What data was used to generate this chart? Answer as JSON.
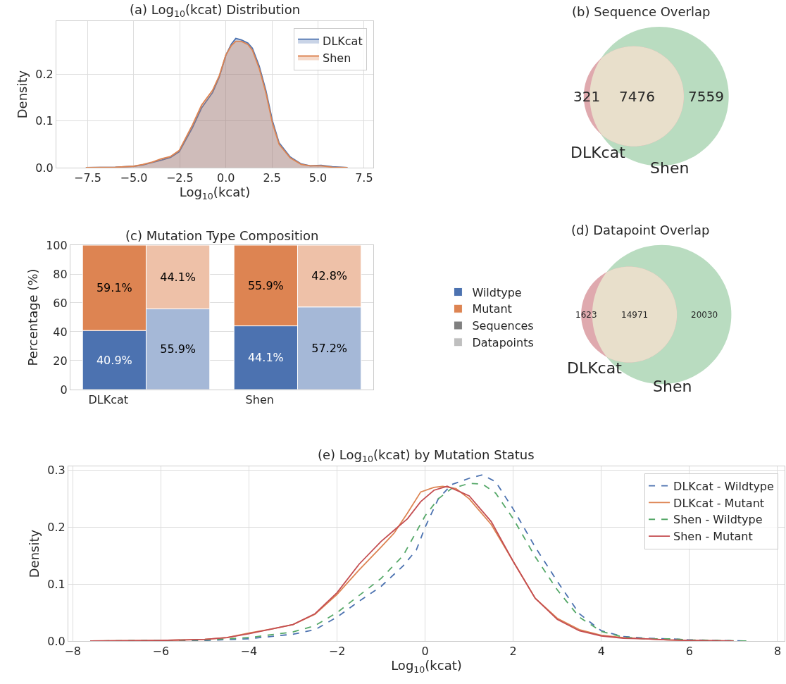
{
  "chart_data": [
    {
      "type": "area",
      "title": "(a) Log$_{10}$(kcat) Distribution",
      "xlabel": "Log$_{10}$(kcat)",
      "ylabel": "Density",
      "xlim": [
        -9.2,
        8.0
      ],
      "ylim": [
        0,
        0.314
      ],
      "xticks": [
        {
          "value": -7.5,
          "label": "−7.5"
        },
        {
          "value": -5,
          "label": "−5.0"
        },
        {
          "value": -2.5,
          "label": "−2.5"
        },
        {
          "value": 0,
          "label": "0.0"
        },
        {
          "value": 2.5,
          "label": "2.5"
        },
        {
          "value": 5,
          "label": "5.0"
        },
        {
          "value": 7.5,
          "label": "7.5"
        }
      ],
      "yticks": [
        {
          "value": 0,
          "label": "0.0"
        },
        {
          "value": 0.1,
          "label": "0.1"
        },
        {
          "value": 0.2,
          "label": "0.2"
        }
      ],
      "grid": true,
      "legend": "top right",
      "series": [
        {
          "name": "DLKcat",
          "color": "#4c72b0",
          "x": [
            -7.6,
            -6,
            -5,
            -4.5,
            -4,
            -3.5,
            -3,
            -2.53,
            -1.81,
            -1.32,
            -0.72,
            -0.36,
            0,
            0.3,
            0.54,
            0.84,
            1.2,
            1.44,
            1.81,
            2.17,
            2.53,
            2.89,
            3.49,
            4.09,
            4.57,
            5.17,
            5.78,
            6.6
          ],
          "values": [
            0,
            0.001,
            0.003,
            0.006,
            0.011,
            0.016,
            0.022,
            0.034,
            0.086,
            0.128,
            0.161,
            0.194,
            0.241,
            0.265,
            0.277,
            0.274,
            0.267,
            0.256,
            0.218,
            0.166,
            0.1,
            0.053,
            0.023,
            0.008,
            0.004,
            0.005,
            0.002,
            0
          ]
        },
        {
          "name": "Shen",
          "color": "#dd8452",
          "x": [
            -7.6,
            -6,
            -5,
            -4.5,
            -4,
            -3.5,
            -3,
            -2.53,
            -1.81,
            -1.32,
            -0.72,
            -0.36,
            0,
            0.3,
            0.54,
            0.84,
            1.2,
            1.44,
            1.81,
            2.17,
            2.53,
            2.89,
            3.49,
            4.09,
            4.57,
            5.17,
            5.78,
            6.6
          ],
          "values": [
            0,
            0.001,
            0.003,
            0.007,
            0.012,
            0.019,
            0.024,
            0.037,
            0.092,
            0.134,
            0.166,
            0.197,
            0.242,
            0.262,
            0.271,
            0.271,
            0.264,
            0.252,
            0.213,
            0.161,
            0.095,
            0.05,
            0.021,
            0.007,
            0.004,
            0.004,
            0.001,
            0
          ]
        }
      ]
    },
    {
      "type": "other",
      "title": "(b) Sequence Overlap",
      "categories": [
        null,
        null,
        null
      ],
      "values": [
        321,
        7476,
        7559
      ],
      "data_labels": true,
      "colors": [
        "#dfa9ae",
        "#e8dfcb",
        "#b9dcc0"
      ],
      "annotations": [
        "DLKcat",
        "Shen"
      ]
    },
    {
      "type": "bar",
      "title": "(c) Mutation Type Composition",
      "ylabel": "Percentage (%)",
      "categories": [
        "DLKcat",
        null,
        "Shen",
        null
      ],
      "stacked": true,
      "ylim": [
        0,
        100
      ],
      "yticks": [
        0,
        20,
        40,
        60,
        80,
        100
      ],
      "grid": "y",
      "legend": "right",
      "series": [
        {
          "name": "Wildtype",
          "color": "#4c72b0",
          "values": [
            40.9,
            null,
            44.1,
            null
          ],
          "value_labels": [
            "40.9%",
            null,
            "44.1%",
            null
          ]
        },
        {
          "name": "Mutant",
          "color": "#dd8452",
          "values": [
            59.1,
            null,
            55.9,
            null
          ],
          "value_labels": [
            "59.1%",
            null,
            "55.9%",
            null
          ]
        },
        {
          "color": "#a5b8d7",
          "values": [
            null,
            55.9,
            null,
            57.2
          ],
          "value_labels": [
            null,
            "55.9%",
            null,
            "57.2%"
          ]
        },
        {
          "color": "#eec1a8",
          "values": [
            null,
            44.1,
            null,
            42.8
          ],
          "value_labels": [
            null,
            "44.1%",
            null,
            "42.8%"
          ]
        },
        {
          "name": "Sequences",
          "color": "#808080",
          "values": [
            null,
            null,
            null,
            null
          ]
        },
        {
          "name": "Datapoints",
          "color": "#bfbfbf",
          "values": [
            null,
            null,
            null,
            null
          ]
        }
      ]
    },
    {
      "type": "other",
      "title": "(d) Datapoint Overlap",
      "categories": [
        null,
        null,
        null
      ],
      "values": [
        1623,
        14971,
        20030
      ],
      "data_labels": true,
      "colors": [
        "#dfa9ae",
        "#e8dfcb",
        "#b9dcc0"
      ],
      "annotations": [
        "DLKcat",
        "Shen"
      ]
    },
    {
      "type": "line",
      "title": "(e) Log$_{10}$(kcat) by Mutation Status",
      "xlabel": "Log$_{10}$(kcat)",
      "ylabel": "Density",
      "xlim": [
        -8.1,
        8.16
      ],
      "ylim": [
        0,
        0.307
      ],
      "xticks": [
        {
          "value": -8,
          "label": "−8"
        },
        {
          "value": -6,
          "label": "−6"
        },
        {
          "value": -4,
          "label": "−4"
        },
        {
          "value": -2,
          "label": "−2"
        },
        0,
        2,
        4,
        6,
        8
      ],
      "yticks": [
        {
          "value": 0,
          "label": "0.0"
        },
        {
          "value": 0.1,
          "label": "0.1"
        },
        {
          "value": 0.2,
          "label": "0.2"
        },
        {
          "value": 0.3,
          "label": "0.3"
        }
      ],
      "grid": true,
      "legend": "top right",
      "series": [
        {
          "name": "DLKcat - Wildtype",
          "color": "#4c72b0",
          "line_style": "dashed",
          "x": [
            -7.6,
            -5,
            -4,
            -3,
            -2.5,
            -2,
            -1.5,
            -1,
            -0.5,
            -0.2,
            0,
            0.3,
            0.6,
            1.0,
            1.3,
            1.6,
            2.0,
            2.5,
            3,
            3.5,
            4,
            4.5,
            5,
            5.5,
            6,
            7.3
          ],
          "values": [
            0,
            0.001,
            0.004,
            0.012,
            0.02,
            0.042,
            0.07,
            0.096,
            0.132,
            0.16,
            0.2,
            0.25,
            0.275,
            0.286,
            0.292,
            0.28,
            0.232,
            0.165,
            0.105,
            0.048,
            0.018,
            0.008,
            0.005,
            0.004,
            0.002,
            0
          ]
        },
        {
          "name": "DLKcat - Mutant",
          "color": "#dd8452",
          "line_style": "solid",
          "x": [
            -7.6,
            -6,
            -5,
            -4.5,
            -4,
            -3.5,
            -3,
            -2.5,
            -2,
            -1.5,
            -1,
            -0.7,
            -0.4,
            -0.1,
            0.2,
            0.4,
            0.7,
            1.0,
            1.5,
            2,
            2.5,
            3,
            3.5,
            4,
            4.5,
            5,
            5.5,
            6,
            7
          ],
          "values": [
            0,
            0.001,
            0.003,
            0.006,
            0.014,
            0.021,
            0.029,
            0.047,
            0.082,
            0.125,
            0.165,
            0.19,
            0.225,
            0.262,
            0.27,
            0.272,
            0.268,
            0.25,
            0.205,
            0.14,
            0.075,
            0.04,
            0.02,
            0.01,
            0.006,
            0.004,
            0.002,
            0.001,
            0
          ]
        },
        {
          "name": "Shen - Wildtype",
          "color": "#55a868",
          "line_style": "dashed",
          "x": [
            -7.6,
            -5,
            -4,
            -3,
            -2.5,
            -2,
            -1.5,
            -1,
            -0.5,
            0,
            0.3,
            0.6,
            1.0,
            1.3,
            1.6,
            2.0,
            2.5,
            3,
            3.5,
            4,
            4.5,
            5,
            5.5,
            6,
            7.3
          ],
          "values": [
            0,
            0.002,
            0.006,
            0.016,
            0.027,
            0.05,
            0.08,
            0.11,
            0.15,
            0.22,
            0.25,
            0.268,
            0.277,
            0.276,
            0.26,
            0.215,
            0.148,
            0.09,
            0.042,
            0.017,
            0.007,
            0.004,
            0.004,
            0.002,
            0
          ]
        },
        {
          "name": "Shen - Mutant",
          "color": "#c44e52",
          "line_style": "solid",
          "x": [
            -7.6,
            -6,
            -5,
            -4.5,
            -4,
            -3.5,
            -3,
            -2.5,
            -2,
            -1.5,
            -1,
            -0.7,
            -0.4,
            -0.1,
            0.2,
            0.5,
            0.8,
            1.0,
            1.5,
            2,
            2.5,
            3,
            3.5,
            4,
            4.5,
            5,
            5.5,
            6,
            7
          ],
          "values": [
            0,
            0.001,
            0.003,
            0.006,
            0.013,
            0.021,
            0.029,
            0.048,
            0.085,
            0.135,
            0.175,
            0.195,
            0.215,
            0.245,
            0.265,
            0.272,
            0.262,
            0.255,
            0.21,
            0.14,
            0.075,
            0.038,
            0.018,
            0.009,
            0.005,
            0.004,
            0.002,
            0.001,
            0
          ]
        }
      ]
    }
  ]
}
